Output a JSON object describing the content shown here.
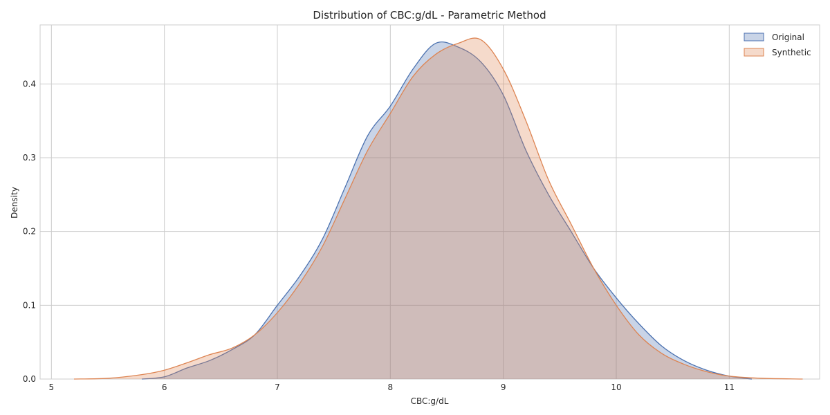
{
  "chart_data": {
    "type": "area",
    "title": "Distribution of CBC:g/dL - Parametric Method",
    "xlabel": "CBC:g/dL",
    "ylabel": "Density",
    "xlim": [
      4.9,
      11.8
    ],
    "ylim": [
      0,
      0.48
    ],
    "xticks": [
      5,
      6,
      7,
      8,
      9,
      10,
      11
    ],
    "yticks": [
      0.0,
      0.1,
      0.2,
      0.3,
      0.4
    ],
    "ytick_labels": [
      "0.0",
      "0.1",
      "0.2",
      "0.3",
      "0.4"
    ],
    "grid": true,
    "legend_position": "top-right",
    "series": [
      {
        "name": "Original",
        "color": "#4c72b0",
        "x": [
          5.8,
          6.0,
          6.2,
          6.4,
          6.6,
          6.8,
          7.0,
          7.2,
          7.4,
          7.6,
          7.8,
          8.0,
          8.2,
          8.4,
          8.6,
          8.8,
          9.0,
          9.2,
          9.4,
          9.6,
          9.8,
          10.0,
          10.2,
          10.4,
          10.6,
          10.8,
          11.0,
          11.2
        ],
        "y": [
          0.0,
          0.003,
          0.015,
          0.025,
          0.04,
          0.06,
          0.1,
          0.14,
          0.19,
          0.26,
          0.33,
          0.37,
          0.42,
          0.455,
          0.45,
          0.43,
          0.385,
          0.31,
          0.25,
          0.2,
          0.15,
          0.11,
          0.075,
          0.045,
          0.025,
          0.012,
          0.004,
          0.0
        ]
      },
      {
        "name": "Synthetic",
        "color": "#dd8452",
        "x": [
          5.2,
          5.5,
          5.8,
          6.0,
          6.2,
          6.4,
          6.6,
          6.8,
          7.0,
          7.2,
          7.4,
          7.6,
          7.8,
          8.0,
          8.2,
          8.4,
          8.6,
          8.8,
          9.0,
          9.2,
          9.4,
          9.6,
          9.8,
          10.0,
          10.2,
          10.4,
          10.6,
          10.8,
          11.0,
          11.3,
          11.65
        ],
        "y": [
          0.0,
          0.001,
          0.006,
          0.012,
          0.022,
          0.033,
          0.042,
          0.06,
          0.09,
          0.13,
          0.18,
          0.245,
          0.31,
          0.36,
          0.41,
          0.44,
          0.455,
          0.46,
          0.42,
          0.35,
          0.27,
          0.21,
          0.15,
          0.1,
          0.06,
          0.035,
          0.02,
          0.01,
          0.004,
          0.001,
          0.0
        ]
      }
    ]
  }
}
